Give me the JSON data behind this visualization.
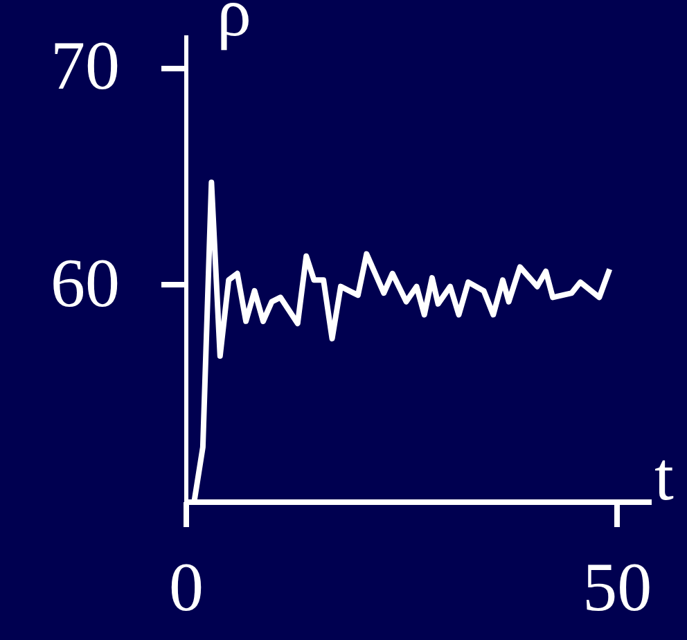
{
  "chart_data": {
    "type": "line",
    "xlabel": "t",
    "ylabel": "ρ",
    "x": [
      1,
      2,
      3,
      4,
      5,
      6,
      7,
      8,
      9,
      10,
      11,
      13,
      14,
      14.9,
      16,
      17,
      18,
      20,
      21,
      23,
      24,
      25.6,
      26.8,
      27.7,
      28.6,
      29.3,
      30.7,
      31.7,
      32.8,
      34.6,
      35.7,
      36.8,
      37.5,
      38.8,
      40.8,
      41.8,
      42.6,
      44.8,
      45.8,
      48,
      49.2
    ],
    "series": [
      {
        "color": "#ffffff",
        "values": [
          50,
          52.5,
          64.7,
          56.7,
          60.2,
          60.5,
          58.3,
          59.7,
          58.3,
          59.2,
          59.4,
          58.2,
          61.3,
          60.2,
          60.2,
          57.5,
          59.9,
          59.5,
          61.4,
          59.6,
          60.5,
          59.2,
          59.9,
          58.6,
          60.3,
          59.1,
          59.9,
          58.6,
          60.1,
          59.7,
          58.6,
          60.2,
          59.2,
          60.8,
          59.9,
          60.6,
          59.4,
          59.6,
          60.1,
          59.4,
          60.7
        ]
      }
    ],
    "xlim": [
      0,
      54
    ],
    "xticks": [
      0,
      50
    ],
    "ylim": [
      50,
      71.5
    ],
    "yticks": [
      60,
      70
    ],
    "grid": false,
    "legend": false,
    "marker": "none",
    "line_style": "solid"
  }
}
